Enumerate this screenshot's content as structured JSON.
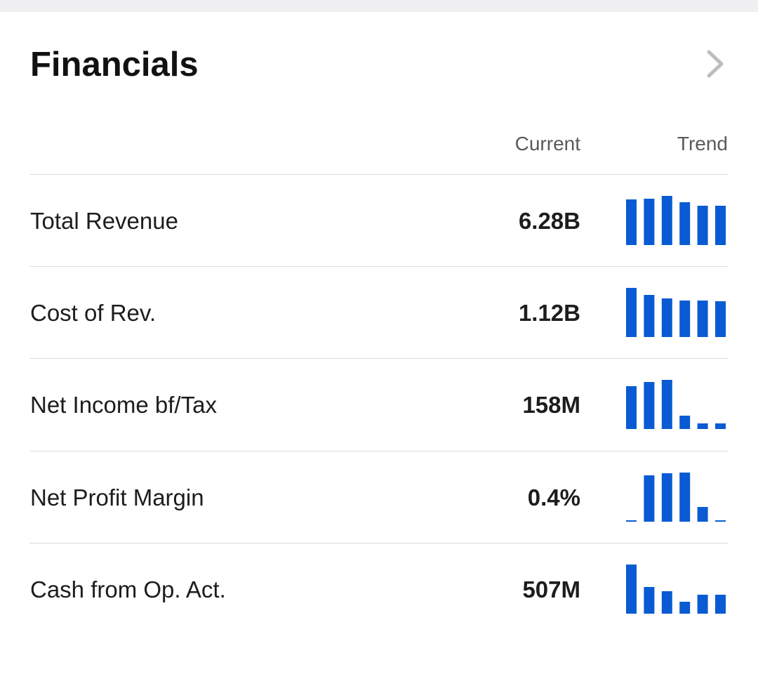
{
  "header": {
    "title": "Financials",
    "columns": {
      "current": "Current",
      "trend": "Trend"
    }
  },
  "icons": {
    "more": "chevron-right-icon"
  },
  "colors": {
    "bar": "#0a5bd3",
    "chevron": "#bdbdbd"
  },
  "rows": [
    {
      "label": "Total Revenue",
      "value": "6.28B",
      "trend": [
        0.9,
        0.92,
        0.97,
        0.85,
        0.78,
        0.78
      ]
    },
    {
      "label": "Cost of Rev.",
      "value": "1.12B",
      "trend": [
        0.97,
        0.84,
        0.76,
        0.72,
        0.72,
        0.71
      ]
    },
    {
      "label": "Net Income bf/Tax",
      "value": "158M",
      "trend": [
        0.85,
        0.93,
        0.97,
        0.26,
        0.11,
        0.11
      ]
    },
    {
      "label": "Net Profit Margin",
      "value": "0.4%",
      "trend": [
        0.02,
        0.92,
        0.96,
        0.97,
        0.29,
        0.02
      ]
    },
    {
      "label": "Cash from Op. Act.",
      "value": "507M",
      "trend": [
        0.97,
        0.53,
        0.45,
        0.24,
        0.38,
        0.38
      ]
    }
  ]
}
